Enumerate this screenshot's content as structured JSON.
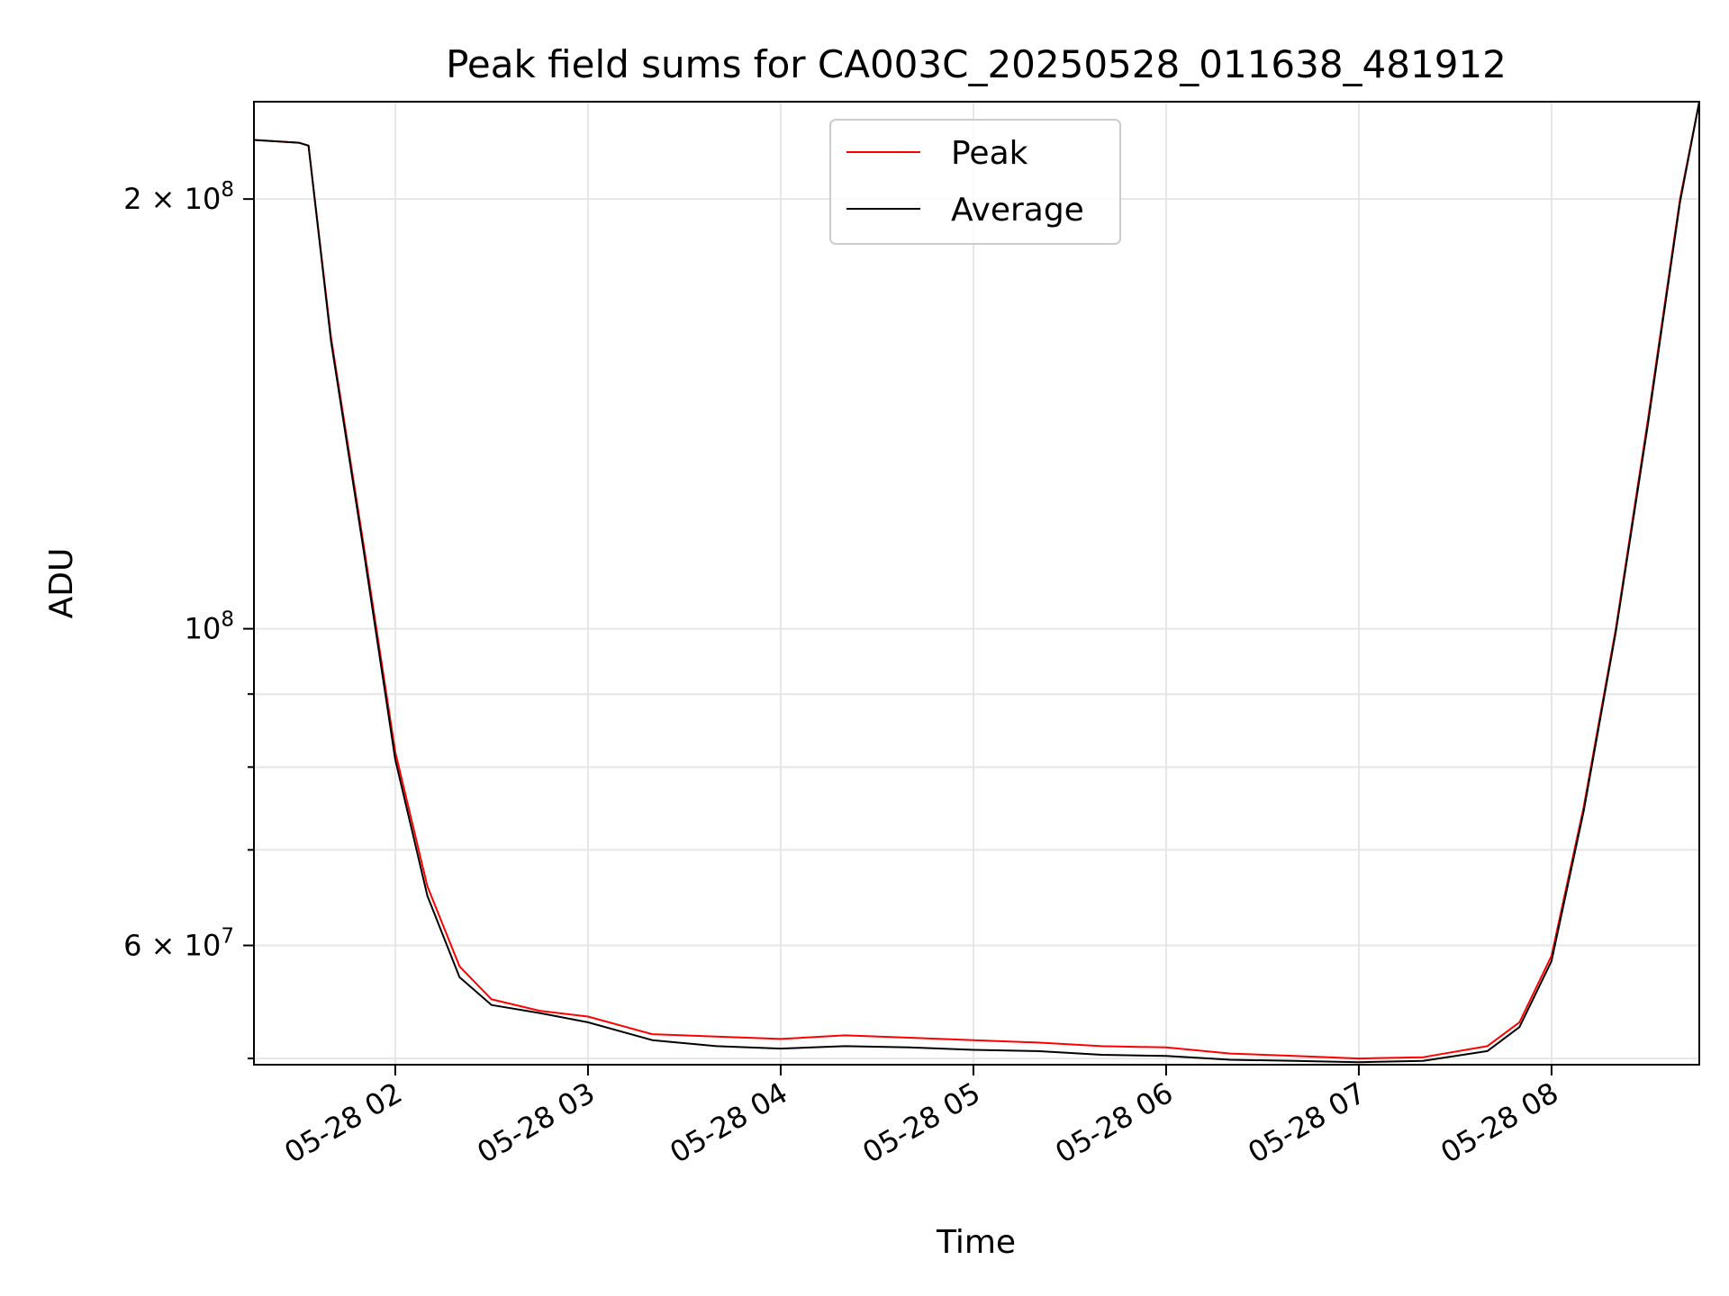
{
  "chart_data": {
    "type": "line",
    "title": "Peak field sums for CA003C_20250528_011638_481912",
    "xlabel": "Time",
    "ylabel": "ADU",
    "yscale": "log",
    "grid": true,
    "legend_placement": "upper-center",
    "xlim": [
      "05-28 01:16",
      "05-28 08:46"
    ],
    "ylim": [
      49500000,
      234000000
    ],
    "x_ticks": [
      {
        "value": "05-28 02:00",
        "label": "05-28 02"
      },
      {
        "value": "05-28 03:00",
        "label": "05-28 03"
      },
      {
        "value": "05-28 04:00",
        "label": "05-28 04"
      },
      {
        "value": "05-28 05:00",
        "label": "05-28 05"
      },
      {
        "value": "05-28 06:00",
        "label": "05-28 06"
      },
      {
        "value": "05-28 07:00",
        "label": "05-28 07"
      },
      {
        "value": "05-28 08:00",
        "label": "05-28 08"
      }
    ],
    "y_major_ticks": [
      {
        "value": 60000000,
        "mant": "6",
        "exp": "7"
      },
      {
        "value": 100000000,
        "mant": "",
        "exp": "8"
      },
      {
        "value": 200000000,
        "mant": "2",
        "exp": "8"
      }
    ],
    "y_minor_ticks": [
      50000000,
      70000000,
      80000000,
      90000000
    ],
    "series": [
      {
        "name": "Peak",
        "color": "#ff0000",
        "x": [
          "05-28 01:16",
          "05-28 01:30",
          "05-28 01:33",
          "05-28 01:40",
          "05-28 01:50",
          "05-28 02:00",
          "05-28 02:10",
          "05-28 02:20",
          "05-28 02:30",
          "05-28 02:45",
          "05-28 03:00",
          "05-28 03:20",
          "05-28 03:40",
          "05-28 04:00",
          "05-28 04:20",
          "05-28 04:40",
          "05-28 05:00",
          "05-28 05:20",
          "05-28 05:40",
          "05-28 06:00",
          "05-28 06:20",
          "05-28 06:40",
          "05-28 07:00",
          "05-28 07:20",
          "05-28 07:40",
          "05-28 07:50",
          "05-28 08:00",
          "05-28 08:10",
          "05-28 08:20",
          "05-28 08:30",
          "05-28 08:40",
          "05-28 08:46"
        ],
        "values": [
          220000000,
          219000000,
          218000000,
          160000000,
          115000000,
          82000000,
          66000000,
          58000000,
          55000000,
          54000000,
          53500000,
          52000000,
          51800000,
          51600000,
          51900000,
          51700000,
          51500000,
          51300000,
          51000000,
          50900000,
          50400000,
          50200000,
          50000000,
          50100000,
          51000000,
          53000000,
          59000000,
          75000000,
          100000000,
          140000000,
          200000000,
          234000000
        ]
      },
      {
        "name": "Average",
        "color": "#000000",
        "x": [
          "05-28 01:16",
          "05-28 01:30",
          "05-28 01:33",
          "05-28 01:40",
          "05-28 01:50",
          "05-28 02:00",
          "05-28 02:10",
          "05-28 02:20",
          "05-28 02:30",
          "05-28 02:45",
          "05-28 03:00",
          "05-28 03:20",
          "05-28 03:40",
          "05-28 04:00",
          "05-28 04:20",
          "05-28 04:40",
          "05-28 05:00",
          "05-28 05:20",
          "05-28 05:40",
          "05-28 06:00",
          "05-28 06:20",
          "05-28 06:40",
          "05-28 07:00",
          "05-28 07:20",
          "05-28 07:40",
          "05-28 07:50",
          "05-28 08:00",
          "05-28 08:10",
          "05-28 08:20",
          "05-28 08:30",
          "05-28 08:40",
          "05-28 08:46"
        ],
        "values": [
          220000000,
          219000000,
          218000000,
          159000000,
          114000000,
          81000000,
          65000000,
          57000000,
          54500000,
          53800000,
          53000000,
          51500000,
          51000000,
          50800000,
          51000000,
          50900000,
          50700000,
          50600000,
          50300000,
          50200000,
          49900000,
          49800000,
          49700000,
          49800000,
          50600000,
          52600000,
          58500000,
          74500000,
          99500000,
          139000000,
          199000000,
          234000000
        ]
      }
    ]
  }
}
